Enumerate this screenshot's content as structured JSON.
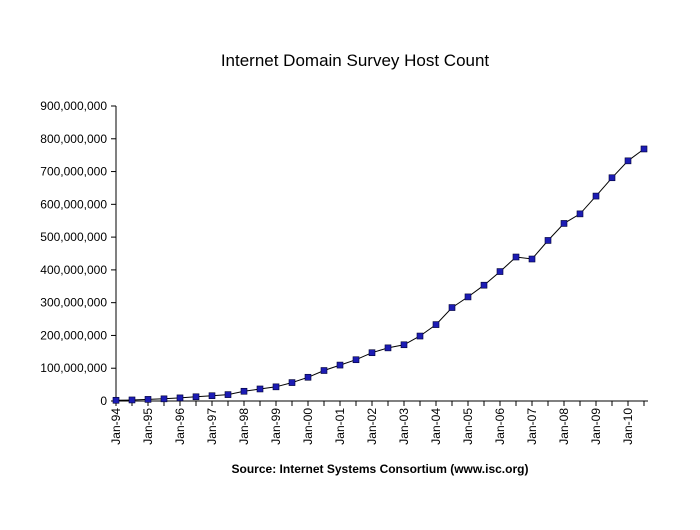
{
  "chart_data": {
    "type": "line",
    "title": "Internet Domain Survey Host Count",
    "source": "Source: Internet Systems Consortium (www.isc.org)",
    "xlabel": "",
    "ylabel": "",
    "ylim": [
      0,
      900000000
    ],
    "yticks": [
      "0",
      "100,000,000",
      "200,000,000",
      "300,000,000",
      "400,000,000",
      "500,000,000",
      "600,000,000",
      "700,000,000",
      "800,000,000",
      "900,000,000"
    ],
    "xtick_labels": [
      "Jan-94",
      "Jan-95",
      "Jan-96",
      "Jan-97",
      "Jan-98",
      "Jan-99",
      "Jan-00",
      "Jan-01",
      "Jan-02",
      "Jan-03",
      "Jan-04",
      "Jan-05",
      "Jan-06",
      "Jan-07",
      "Jan-08",
      "Jan-09",
      "Jan-10"
    ],
    "grid": false,
    "legend": "none",
    "marker_color": "#1c1cb4",
    "series": [
      {
        "x": [
          "Jan-94",
          "Jul-94",
          "Jan-95",
          "Jul-95",
          "Jan-96",
          "Jul-96",
          "Jan-97",
          "Jul-97",
          "Jan-98",
          "Jul-98",
          "Jan-99",
          "Jul-99",
          "Jan-00",
          "Jul-00",
          "Jan-01",
          "Jul-01",
          "Jan-02",
          "Jul-02",
          "Jan-03",
          "Jul-03",
          "Jan-04",
          "Jul-04",
          "Jan-05",
          "Jul-05",
          "Jan-06",
          "Jul-06",
          "Jan-07",
          "Jul-07",
          "Jan-08",
          "Jul-08",
          "Jan-09",
          "Jul-09",
          "Jan-10",
          "Jul-10"
        ],
        "values": [
          2200000,
          3200000,
          4900000,
          6600000,
          9500000,
          12900000,
          16100000,
          19500000,
          29700000,
          36700000,
          43200000,
          56200000,
          72400000,
          93000000,
          109600000,
          125900000,
          147300000,
          162100000,
          171600000,
          198200000,
          233100000,
          285100000,
          317600000,
          353300000,
          394900000,
          439300000,
          433200000,
          489800000,
          541700000,
          570900000,
          625200000,
          681100000,
          732700000,
          768900000
        ]
      }
    ]
  }
}
